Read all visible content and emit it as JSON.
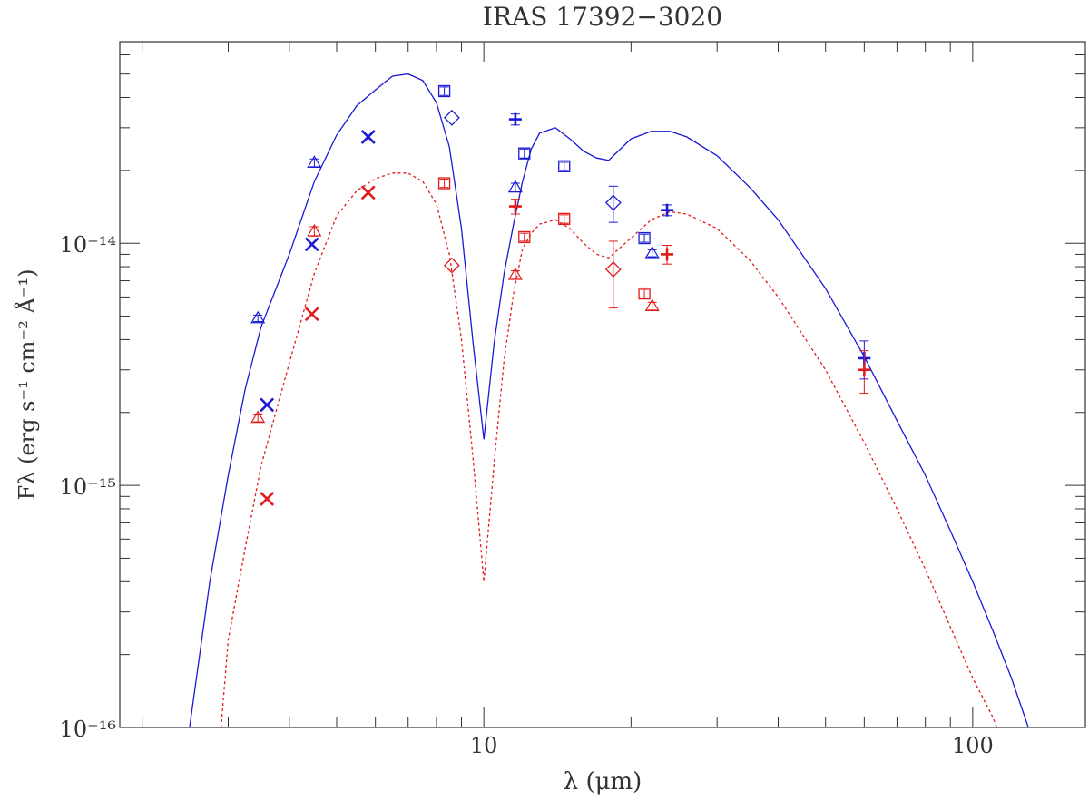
{
  "chart_data": {
    "type": "scatter",
    "title": "IRAS 17392−3020",
    "xlabel": "λ (μm)",
    "ylabel": "Fλ (erg s⁻¹ cm⁻² Å⁻¹)",
    "x_scale": "log",
    "y_scale": "log",
    "xlim": [
      1.8,
      170
    ],
    "ylim": [
      1e-16,
      6.8e-14
    ],
    "x_ticks": [
      10,
      100
    ],
    "x_tick_labels": [
      "10",
      "100"
    ],
    "y_ticks": [
      1e-16,
      1e-15,
      1e-14
    ],
    "y_tick_labels": [
      "10⁻¹⁶",
      "10⁻¹⁵",
      "10⁻¹⁴"
    ],
    "colors": {
      "blue": "#1a1ad6",
      "red": "#e31a1a"
    },
    "models": [
      {
        "color": "blue",
        "style": "solid",
        "x": [
          2.5,
          2.75,
          3.0,
          3.25,
          3.5,
          4.0,
          4.5,
          5.0,
          5.5,
          6.0,
          6.5,
          7.0,
          7.5,
          8.0,
          8.5,
          9.0,
          9.5,
          10.0,
          10.5,
          11.0,
          11.5,
          12.0,
          12.5,
          13.0,
          14.0,
          15.0,
          16.0,
          17.0,
          18.0,
          20.0,
          22.0,
          24.0,
          26.0,
          30.0,
          35.0,
          40.0,
          50.0,
          60.0,
          70.0,
          80.0,
          90.0,
          100.0,
          110.0,
          120.0,
          130.0
        ],
        "y": [
          1e-16,
          4e-16,
          1.1e-15,
          2.5e-15,
          4.5e-15,
          9e-15,
          1.8e-14,
          2.8e-14,
          3.7e-14,
          4.3e-14,
          4.9e-14,
          5e-14,
          4.7e-14,
          3.8e-14,
          2.5e-14,
          1.15e-14,
          3.9e-15,
          1.55e-15,
          3.9e-15,
          7.5e-15,
          1.2e-14,
          1.8e-14,
          2.45e-14,
          2.85e-14,
          3e-14,
          2.7e-14,
          2.4e-14,
          2.25e-14,
          2.2e-14,
          2.7e-14,
          2.9e-14,
          2.9e-14,
          2.75e-14,
          2.3e-14,
          1.7e-14,
          1.25e-14,
          6.5e-15,
          3.4e-15,
          1.85e-15,
          1.1e-15,
          6.5e-16,
          4e-16,
          2.5e-16,
          1.6e-16,
          1e-16
        ]
      },
      {
        "color": "red",
        "style": "dotted",
        "x": [
          2.9,
          3.0,
          3.25,
          3.5,
          4.0,
          4.5,
          5.0,
          5.5,
          6.0,
          6.5,
          7.0,
          7.5,
          8.0,
          8.5,
          9.0,
          9.5,
          10.0,
          10.5,
          11.0,
          11.5,
          12.0,
          12.5,
          13.0,
          14.0,
          15.0,
          16.0,
          17.0,
          18.0,
          20.0,
          22.0,
          24.0,
          26.0,
          30.0,
          35.0,
          40.0,
          50.0,
          60.0,
          70.0,
          80.0,
          90.0,
          100.0,
          110.0,
          112.0
        ],
        "y": [
          1e-16,
          2.3e-16,
          5.5e-16,
          1.2e-15,
          3.2e-15,
          7.5e-15,
          1.3e-14,
          1.65e-14,
          1.85e-14,
          1.95e-14,
          1.95e-14,
          1.8e-14,
          1.45e-14,
          9e-15,
          4e-15,
          1.3e-15,
          4e-16,
          1.25e-15,
          3.3e-15,
          6.2e-15,
          9.5e-15,
          1.1e-14,
          1.2e-14,
          1.25e-14,
          1.15e-14,
          1e-14,
          9e-15,
          8.7e-15,
          1.05e-14,
          1.25e-14,
          1.35e-14,
          1.32e-14,
          1.15e-14,
          8.5e-15,
          6e-15,
          3e-15,
          1.5e-15,
          8e-16,
          4.5e-16,
          2.6e-16,
          1.6e-16,
          1.1e-16,
          1e-16
        ]
      }
    ],
    "series": [
      {
        "color": "blue",
        "points": [
          {
            "marker": "triangle",
            "x": 3.45,
            "y": 4.9e-15,
            "err": 1.5e-16
          },
          {
            "marker": "triangle",
            "x": 4.5,
            "y": 2.15e-14,
            "err": 8e-16
          },
          {
            "marker": "triangle",
            "x": 11.6,
            "y": 1.7e-14,
            "err": 7e-16
          },
          {
            "marker": "triangle",
            "x": 22.1,
            "y": 9.1e-15,
            "err": 3e-16
          },
          {
            "marker": "x",
            "x": 3.6,
            "y": 2.15e-15,
            "err": 0
          },
          {
            "marker": "x",
            "x": 4.45,
            "y": 9.9e-15,
            "err": 0
          },
          {
            "marker": "x",
            "x": 5.8,
            "y": 2.75e-14,
            "err": 0
          },
          {
            "marker": "square",
            "x": 8.3,
            "y": 4.25e-14,
            "err": 1.7e-15
          },
          {
            "marker": "square",
            "x": 12.1,
            "y": 2.35e-14,
            "err": 1e-15
          },
          {
            "marker": "square",
            "x": 14.6,
            "y": 2.08e-14,
            "err": 8e-16
          },
          {
            "marker": "square",
            "x": 21.3,
            "y": 1.05e-14,
            "err": 4e-16
          },
          {
            "marker": "diamond",
            "x": 8.6,
            "y": 3.3e-14,
            "err": 0
          },
          {
            "marker": "diamond",
            "x": 18.4,
            "y": 1.47e-14,
            "err": 2.5e-15
          },
          {
            "marker": "plus",
            "x": 11.6,
            "y": 3.25e-14,
            "err": 1.7e-15
          },
          {
            "marker": "plus",
            "x": 23.7,
            "y": 1.37e-14,
            "err": 7e-16
          },
          {
            "marker": "plus",
            "x": 60.0,
            "y": 3.35e-15,
            "err": 6e-16
          }
        ]
      },
      {
        "color": "red",
        "points": [
          {
            "marker": "triangle",
            "x": 3.45,
            "y": 1.9e-15,
            "err": 7e-17
          },
          {
            "marker": "triangle",
            "x": 4.5,
            "y": 1.12e-14,
            "err": 5e-16
          },
          {
            "marker": "triangle",
            "x": 11.6,
            "y": 7.4e-15,
            "err": 3e-16
          },
          {
            "marker": "triangle",
            "x": 22.1,
            "y": 5.5e-15,
            "err": 2e-16
          },
          {
            "marker": "x",
            "x": 3.6,
            "y": 8.8e-16,
            "err": 0
          },
          {
            "marker": "x",
            "x": 4.45,
            "y": 5.1e-15,
            "err": 0
          },
          {
            "marker": "x",
            "x": 5.8,
            "y": 1.62e-14,
            "err": 0
          },
          {
            "marker": "square",
            "x": 8.3,
            "y": 1.77e-14,
            "err": 7e-16
          },
          {
            "marker": "square",
            "x": 12.1,
            "y": 1.06e-14,
            "err": 4e-16
          },
          {
            "marker": "square",
            "x": 14.6,
            "y": 1.26e-14,
            "err": 5e-16
          },
          {
            "marker": "square",
            "x": 21.3,
            "y": 6.2e-15,
            "err": 2.5e-16
          },
          {
            "marker": "diamond",
            "x": 8.6,
            "y": 8.1e-15,
            "err": 0
          },
          {
            "marker": "diamond",
            "x": 18.4,
            "y": 7.8e-15,
            "err": 2.4e-15
          },
          {
            "marker": "plus",
            "x": 11.6,
            "y": 1.42e-14,
            "err": 1e-15
          },
          {
            "marker": "plus",
            "x": 23.7,
            "y": 9e-15,
            "err": 8e-16
          },
          {
            "marker": "plus",
            "x": 60.0,
            "y": 3e-15,
            "err": 6e-16
          }
        ]
      }
    ]
  }
}
